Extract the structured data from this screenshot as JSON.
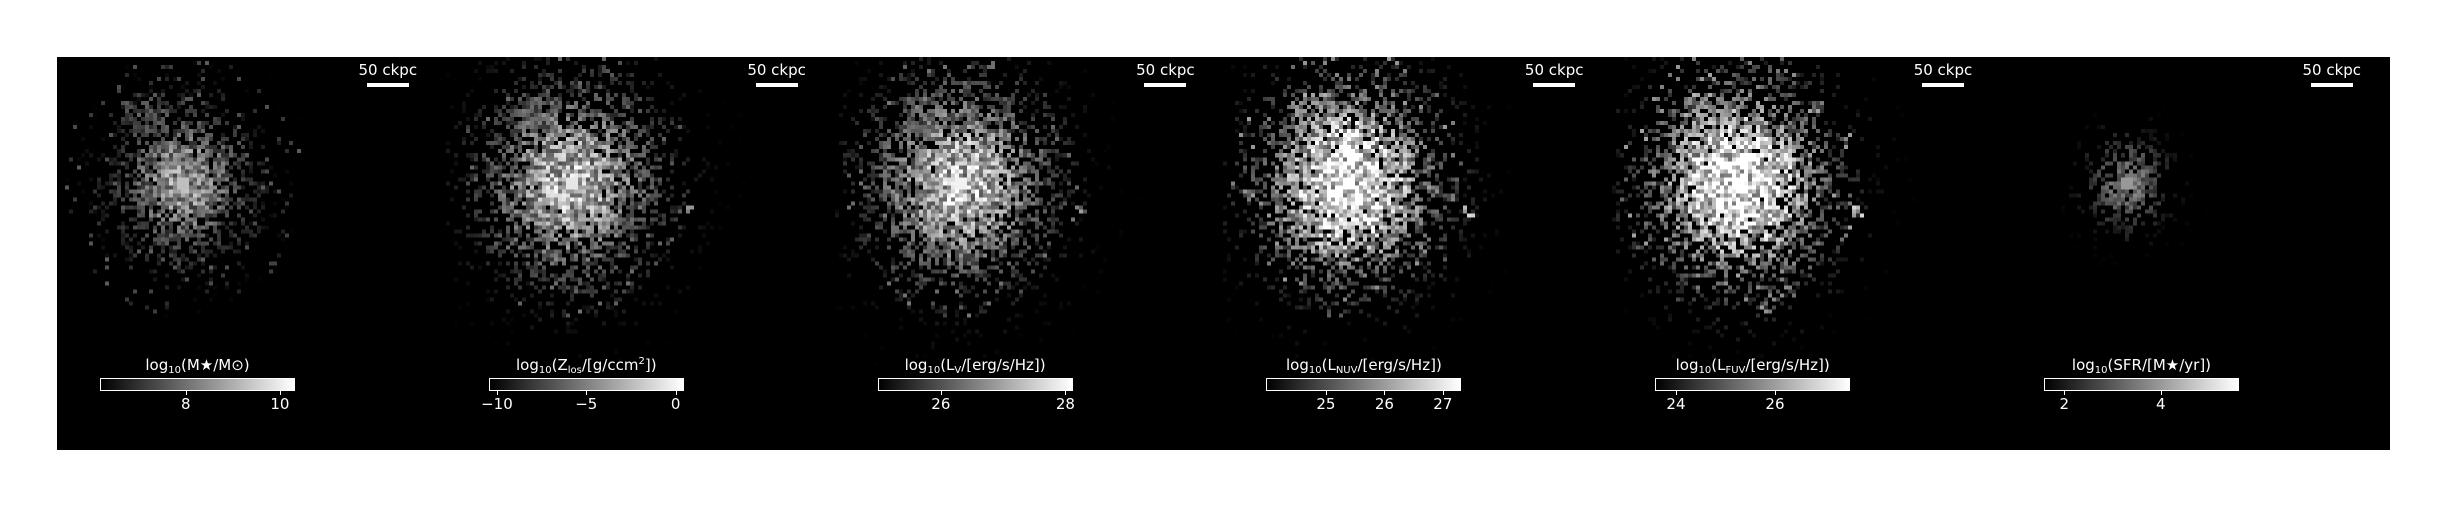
{
  "scale_label": "50 ckpc",
  "panels": [
    {
      "id": "stellar-mass",
      "quantity_prefix": "log",
      "quantity_sub": "10",
      "quantity_body": "(M★/M⊙)",
      "ticks": [
        8,
        10
      ],
      "range": [
        6.2,
        10.3
      ],
      "blob": {
        "type": "mass",
        "brightness": 0.75
      }
    },
    {
      "id": "metal-column",
      "quantity_prefix": "log",
      "quantity_sub": "10",
      "quantity_body": "(Z",
      "quantity_sub2": "los",
      "quantity_body2": "/[g/ccm",
      "quantity_sup": "2",
      "quantity_body3": "])",
      "ticks": [
        -10,
        -5,
        0
      ],
      "range": [
        -10.4,
        0.4
      ],
      "blob": {
        "type": "metal",
        "brightness": 0.9
      }
    },
    {
      "id": "v-band",
      "quantity_prefix": "log",
      "quantity_sub": "10",
      "quantity_body": "(L",
      "quantity_sub2": "V",
      "quantity_body2": "/[erg/s/Hz])",
      "ticks": [
        26,
        28
      ],
      "range": [
        25.0,
        28.1
      ],
      "blob": {
        "type": "light",
        "brightness": 0.95
      }
    },
    {
      "id": "nuv-band",
      "quantity_prefix": "log",
      "quantity_sub": "10",
      "quantity_body": "(L",
      "quantity_sub2": "NUV",
      "quantity_body2": "/[erg/s/Hz])",
      "ticks": [
        25,
        26,
        27
      ],
      "range": [
        24.0,
        27.3
      ],
      "blob": {
        "type": "uv",
        "brightness": 1.25
      }
    },
    {
      "id": "fuv-band",
      "quantity_prefix": "log",
      "quantity_sub": "10",
      "quantity_body": "(L",
      "quantity_sub2": "FUV",
      "quantity_body2": "/[erg/s/Hz])",
      "ticks": [
        24,
        26
      ],
      "range": [
        23.6,
        27.5
      ],
      "blob": {
        "type": "uv",
        "brightness": 1.3
      }
    },
    {
      "id": "sfr",
      "quantity_prefix": "log",
      "quantity_sub": "10",
      "quantity_body": "(SFR/[M★/yr])",
      "ticks": [
        2,
        4
      ],
      "range": [
        1.6,
        5.6
      ],
      "blob": {
        "type": "sfr",
        "brightness": 0.6
      }
    }
  ]
}
